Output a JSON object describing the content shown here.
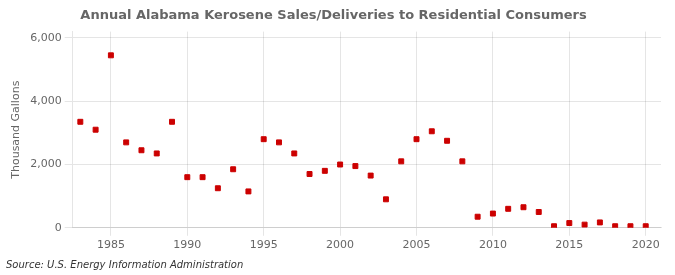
{
  "chart_data": {
    "type": "scatter",
    "title": "Annual Alabama Kerosene Sales/Deliveries to Residential Consumers",
    "ylabel": "Thousand Gallons",
    "annotation": "Source: U.S. Energy Information Administration",
    "x": [
      1983,
      1984,
      1985,
      1986,
      1987,
      1988,
      1989,
      1990,
      1991,
      1992,
      1993,
      1994,
      1995,
      1996,
      1997,
      1998,
      1999,
      2000,
      2001,
      2002,
      2003,
      2004,
      2005,
      2006,
      2007,
      2008,
      2009,
      2010,
      2011,
      2012,
      2013,
      2014,
      2015,
      2016,
      2017,
      2018,
      2019,
      2020
    ],
    "values": [
      3350,
      3100,
      5450,
      2700,
      2450,
      2350,
      3350,
      1600,
      1600,
      1250,
      1850,
      1150,
      2800,
      2700,
      2350,
      1700,
      1800,
      2000,
      1950,
      1650,
      900,
      2100,
      2800,
      3050,
      2750,
      2100,
      350,
      450,
      600,
      650,
      500,
      50,
      150,
      100,
      170,
      50,
      50,
      50
    ],
    "color": "#cc0000",
    "marker": "square",
    "xlim": [
      1982.5,
      2021
    ],
    "xticks": [
      1985,
      1990,
      1995,
      2000,
      2005,
      2010,
      2015,
      2020
    ],
    "ylim": [
      0,
      6200
    ],
    "yticks": [
      0,
      {
        "value": 2000,
        "label": "2,000"
      },
      {
        "value": 4000,
        "label": "4,000"
      },
      {
        "value": 6000,
        "label": "6,000"
      }
    ],
    "grid": true
  }
}
